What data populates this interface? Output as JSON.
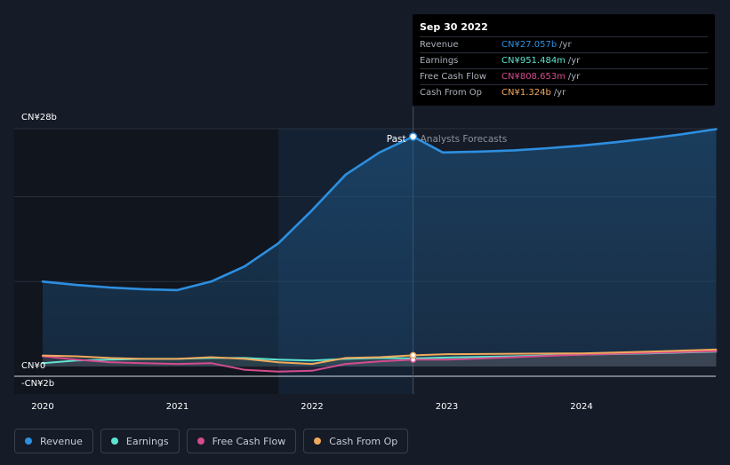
{
  "tooltip": {
    "date": "Sep 30 2022",
    "rows": [
      {
        "label": "Revenue",
        "value": "CN¥27.057b",
        "unit": "/yr",
        "color": "#2d8fe0"
      },
      {
        "label": "Earnings",
        "value": "CN¥951.484m",
        "unit": "/yr",
        "color": "#5ee3cf"
      },
      {
        "label": "Free Cash Flow",
        "value": "CN¥808.653m",
        "unit": "/yr",
        "color": "#d24c8e"
      },
      {
        "label": "Cash From Op",
        "value": "CN¥1.324b",
        "unit": "/yr",
        "color": "#f0a95c"
      }
    ]
  },
  "labels": {
    "past": "Past",
    "forecast": "Analysts Forecasts"
  },
  "legend": [
    {
      "label": "Revenue",
      "color": "#2d8fe0"
    },
    {
      "label": "Earnings",
      "color": "#5ee3cf"
    },
    {
      "label": "Free Cash Flow",
      "color": "#d24c8e"
    },
    {
      "label": "Cash From Op",
      "color": "#f0a95c"
    }
  ],
  "chart_data": {
    "type": "line",
    "title": "",
    "xlabel": "",
    "ylabel": "",
    "y_tick_labels": [
      "CN¥28b",
      "CN¥0",
      "-CN¥2b"
    ],
    "y_tick_values": [
      28,
      0,
      -2
    ],
    "x_tick_labels": [
      "2020",
      "2021",
      "2022",
      "2023",
      "2024"
    ],
    "x_tick_values": [
      2020,
      2021,
      2022,
      2023,
      2024
    ],
    "xlim": [
      2019.8,
      2025.0
    ],
    "ylim": [
      -2,
      28
    ],
    "past_forecast_split": 2022.75,
    "units": "CN¥ billions",
    "series": [
      {
        "name": "Revenue",
        "color": "#2d8fe0",
        "x": [
          2020.0,
          2020.25,
          2020.5,
          2020.75,
          2021.0,
          2021.25,
          2021.5,
          2021.75,
          2022.0,
          2022.25,
          2022.5,
          2022.75,
          2022.97,
          2023.25,
          2023.5,
          2023.75,
          2024.0,
          2024.25,
          2024.5,
          2024.75,
          2025.0
        ],
        "y": [
          10.0,
          9.6,
          9.3,
          9.1,
          9.0,
          10.0,
          11.8,
          14.5,
          18.4,
          22.6,
          25.2,
          27.06,
          25.2,
          25.3,
          25.45,
          25.7,
          26.0,
          26.4,
          26.85,
          27.35,
          27.95
        ]
      },
      {
        "name": "Earnings",
        "color": "#5ee3cf",
        "x": [
          2020.0,
          2020.25,
          2020.5,
          2020.75,
          2021.0,
          2021.25,
          2021.5,
          2021.75,
          2022.0,
          2022.25,
          2022.5,
          2022.75,
          2023.0,
          2023.5,
          2024.0,
          2024.5,
          2025.0
        ],
        "y": [
          0.4,
          0.7,
          0.8,
          0.9,
          0.9,
          1.0,
          1.0,
          0.8,
          0.7,
          0.9,
          1.0,
          0.95,
          1.05,
          1.2,
          1.4,
          1.55,
          1.75
        ]
      },
      {
        "name": "Free Cash Flow",
        "color": "#d24c8e",
        "x": [
          2020.0,
          2020.25,
          2020.5,
          2020.75,
          2021.0,
          2021.25,
          2021.5,
          2021.75,
          2022.0,
          2022.25,
          2022.5,
          2022.75,
          2023.0,
          2023.5,
          2024.0,
          2024.5,
          2025.0
        ],
        "y": [
          1.2,
          0.8,
          0.5,
          0.4,
          0.3,
          0.4,
          -0.4,
          -0.6,
          -0.5,
          0.3,
          0.6,
          0.81,
          0.8,
          1.1,
          1.4,
          1.6,
          1.8
        ]
      },
      {
        "name": "Cash From Op",
        "color": "#f0a95c",
        "x": [
          2020.0,
          2020.25,
          2020.5,
          2020.75,
          2021.0,
          2021.25,
          2021.5,
          2021.75,
          2022.0,
          2022.25,
          2022.5,
          2022.75,
          2023.0,
          2023.5,
          2024.0,
          2024.5,
          2025.0
        ],
        "y": [
          1.3,
          1.2,
          1.0,
          0.9,
          0.9,
          1.1,
          0.9,
          0.5,
          0.3,
          1.0,
          1.1,
          1.32,
          1.45,
          1.5,
          1.55,
          1.75,
          2.0
        ]
      }
    ]
  }
}
